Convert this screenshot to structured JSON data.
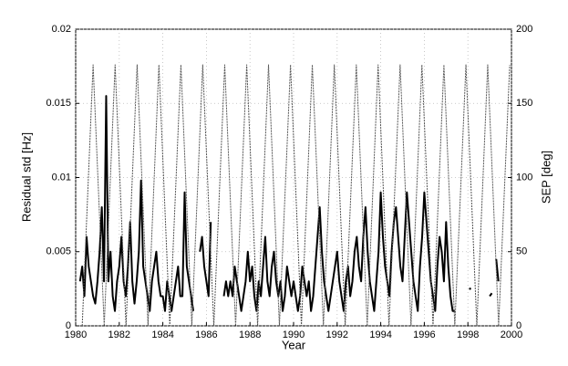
{
  "chart_data": {
    "type": "line",
    "xlabel": "Year",
    "ylabel": "Residual std [Hz]",
    "y2label": "SEP [deg]",
    "xlim": [
      1980,
      2000
    ],
    "xticks": [
      1980,
      1982,
      1984,
      1986,
      1988,
      1990,
      1992,
      1994,
      1996,
      1998,
      2000
    ],
    "ylim": [
      0,
      0.02
    ],
    "yticks": [
      0,
      0.005,
      0.01,
      0.015,
      0.02
    ],
    "y2lim": [
      0,
      200
    ],
    "y2ticks": [
      0,
      50,
      100,
      150,
      200
    ],
    "grid": true,
    "series": [
      {
        "color": "#000000",
        "x": [
          1980.2,
          1980.3,
          1980.4,
          1980.5,
          1980.6,
          1980.7,
          1980.8,
          1980.9,
          1981.0,
          1981.1,
          1981.2,
          1981.3,
          1981.4,
          1981.5,
          1981.6,
          1981.7,
          1981.8,
          1981.9,
          1982.0,
          1982.1,
          1982.2,
          1982.3,
          1982.4,
          1982.5,
          1982.6,
          1982.7,
          1982.8,
          1982.9,
          1983.0,
          1983.1,
          1983.2,
          1983.3,
          1983.4,
          1983.5,
          1983.6,
          1983.7,
          1983.8,
          1983.9,
          1984.0,
          1984.1,
          1984.2,
          1984.3,
          1984.4,
          1984.5,
          1984.6,
          1984.7,
          1984.8,
          1984.9,
          1985.0,
          1985.1,
          1985.2,
          1985.3,
          1985.4,
          1985.5,
          1985.6,
          1985.7,
          1985.8,
          1985.9,
          1986.0,
          1986.1,
          1986.2,
          1986.3,
          1986.4,
          1986.5,
          1986.6,
          1986.7,
          1986.8,
          1986.9,
          1987.0,
          1987.1,
          1987.2,
          1987.3,
          1987.4,
          1987.5,
          1987.6,
          1987.7,
          1987.8,
          1987.9,
          1988.0,
          1988.1,
          1988.2,
          1988.3,
          1988.4,
          1988.5,
          1988.6,
          1988.7,
          1988.8,
          1988.9,
          1989.0,
          1989.1,
          1989.2,
          1989.3,
          1989.4,
          1989.5,
          1989.6,
          1989.7,
          1989.8,
          1989.9,
          1990.0,
          1990.1,
          1990.2,
          1990.3,
          1990.4,
          1990.5,
          1990.6,
          1990.7,
          1990.8,
          1990.9,
          1991.0,
          1991.1,
          1991.2,
          1991.3,
          1991.4,
          1991.5,
          1991.6,
          1991.7,
          1991.8,
          1991.9,
          1992.0,
          1992.1,
          1992.2,
          1992.3,
          1992.4,
          1992.5,
          1992.6,
          1992.7,
          1992.8,
          1992.9,
          1993.0,
          1993.1,
          1993.2,
          1993.3,
          1993.4,
          1993.5,
          1993.6,
          1993.7,
          1993.8,
          1993.9,
          1994.0,
          1994.1,
          1994.2,
          1994.3,
          1994.4,
          1994.5,
          1994.6,
          1994.7,
          1994.8,
          1994.9,
          1995.0,
          1995.1,
          1995.2,
          1995.3,
          1995.4,
          1995.5,
          1995.6,
          1995.7,
          1995.8,
          1995.9,
          1996.0,
          1996.1,
          1996.2,
          1996.3,
          1996.4,
          1996.5,
          1996.6,
          1996.7,
          1996.8,
          1996.9,
          1997.0,
          1997.1,
          1997.2,
          1997.3,
          1997.4,
          1997.5,
          1998.1,
          1998.5,
          1999.0,
          1999.1,
          1999.2,
          1999.3,
          1999.4
        ],
        "values": [
          0.003,
          0.004,
          0.002,
          0.006,
          0.004,
          0.003,
          0.002,
          0.0015,
          0.003,
          0.005,
          0.008,
          0.003,
          0.0155,
          0.003,
          0.005,
          0.002,
          0.001,
          0.003,
          0.004,
          0.006,
          0.003,
          0.002,
          0.004,
          0.007,
          0.003,
          0.0015,
          0.003,
          0.005,
          0.0098,
          0.004,
          0.003,
          0.002,
          0.001,
          0.003,
          0.004,
          0.005,
          0.003,
          0.002,
          0.002,
          0.001,
          0.003,
          0.002,
          0.001,
          0.002,
          0.003,
          0.004,
          0.002,
          0.002,
          0.009,
          0.004,
          0.003,
          0.002,
          0.001,
          null,
          null,
          0.005,
          0.006,
          0.004,
          0.003,
          0.002,
          0.007,
          null,
          null,
          null,
          null,
          null,
          0.002,
          0.003,
          0.002,
          0.003,
          0.002,
          0.004,
          0.003,
          0.002,
          0.001,
          0.002,
          0.003,
          0.005,
          0.003,
          0.004,
          0.002,
          0.001,
          0.003,
          0.002,
          0.004,
          0.006,
          0.003,
          0.002,
          0.004,
          0.005,
          0.003,
          0.002,
          0.003,
          0.001,
          0.002,
          0.004,
          0.003,
          0.002,
          0.003,
          0.002,
          0.001,
          0.002,
          0.004,
          0.003,
          0.002,
          0.003,
          0.001,
          0.002,
          0.004,
          0.006,
          0.008,
          0.005,
          0.003,
          0.002,
          0.001,
          0.002,
          0.003,
          0.004,
          0.005,
          0.003,
          0.002,
          0.001,
          0.003,
          0.004,
          0.002,
          0.003,
          0.005,
          0.006,
          0.004,
          0.003,
          0.006,
          0.008,
          0.005,
          0.003,
          0.002,
          0.001,
          0.003,
          0.005,
          0.009,
          0.006,
          0.004,
          0.003,
          0.002,
          0.005,
          0.007,
          0.008,
          0.006,
          0.004,
          0.003,
          0.006,
          0.009,
          0.007,
          0.005,
          0.003,
          0.002,
          0.001,
          0.004,
          0.006,
          0.009,
          0.007,
          0.005,
          0.003,
          0.002,
          0.001,
          0.004,
          0.006,
          0.005,
          0.003,
          0.007,
          0.004,
          0.002,
          0.001,
          0.001,
          null,
          0.0025,
          null,
          0.002,
          0.0022,
          null,
          0.0045,
          0.003
        ]
      },
      {
        "color": "#555555",
        "axis": "y2",
        "dashed": true,
        "x": [
          1980.3,
          1980.8,
          1981.31,
          1981.81,
          1982.31,
          1982.82,
          1983.32,
          1983.82,
          1984.32,
          1984.83,
          1985.33,
          1985.83,
          1986.34,
          1986.84,
          1987.34,
          1987.85,
          1988.35,
          1988.85,
          1989.35,
          1989.86,
          1990.36,
          1990.86,
          1991.37,
          1991.87,
          1992.37,
          1992.88,
          1993.38,
          1993.88,
          1994.38,
          1994.89,
          1995.39,
          1995.89,
          1996.4,
          1996.9,
          1997.4,
          1997.91,
          1998.41,
          1998.91,
          1999.41,
          1999.92
        ],
        "values": [
          0,
          176,
          0,
          176,
          0,
          176,
          0,
          176,
          0,
          176,
          0,
          176,
          0,
          176,
          0,
          176,
          0,
          176,
          0,
          176,
          0,
          176,
          0,
          176,
          0,
          176,
          0,
          176,
          0,
          176,
          0,
          176,
          0,
          176,
          0,
          176,
          0,
          176,
          0,
          176
        ]
      }
    ]
  }
}
